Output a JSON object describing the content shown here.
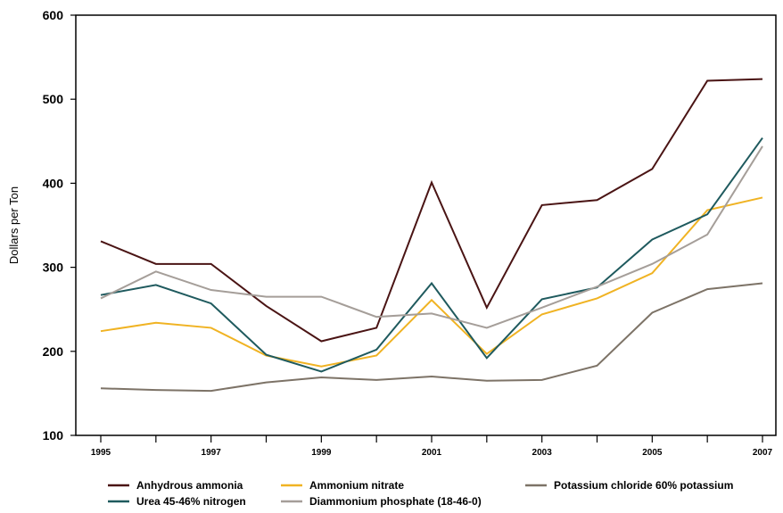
{
  "chart_data": {
    "type": "line",
    "title": "",
    "xlabel": "",
    "ylabel": "Dollars per Ton",
    "x": [
      1995,
      1996,
      1997,
      1998,
      1999,
      2000,
      2001,
      2002,
      2003,
      2004,
      2005,
      2006,
      2007
    ],
    "x_tick_labels": [
      "1995",
      "1997",
      "1999",
      "2001",
      "2003",
      "2005",
      "2007"
    ],
    "y_tick_labels": [
      "100",
      "200",
      "300",
      "400",
      "500",
      "600"
    ],
    "xlim": [
      1995,
      2007
    ],
    "ylim": [
      100,
      600
    ],
    "grid": false,
    "legend_position": "bottom",
    "series": [
      {
        "name": "Anhydrous ammonia",
        "color": "#4a1414",
        "values": [
          331,
          304,
          304,
          254,
          212,
          228,
          401,
          252,
          374,
          380,
          417,
          522,
          524
        ]
      },
      {
        "name": "Ammonium nitrate",
        "color": "#f0b323",
        "values": [
          224,
          234,
          228,
          195,
          182,
          195,
          261,
          197,
          244,
          263,
          293,
          368,
          383
        ]
      },
      {
        "name": "Potassium chloride 60% potassium",
        "color": "#7d7367",
        "values": [
          156,
          154,
          153,
          163,
          169,
          166,
          170,
          165,
          166,
          183,
          246,
          274,
          281
        ]
      },
      {
        "name": "Urea 45-46% nitrogen",
        "color": "#1f5a5e",
        "values": [
          267,
          279,
          257,
          196,
          176,
          202,
          281,
          192,
          262,
          276,
          333,
          363,
          454
        ]
      },
      {
        "name": "Diammonium phosphate (18-46-0)",
        "color": "#a59e99",
        "values": [
          263,
          295,
          273,
          265,
          265,
          241,
          245,
          228,
          252,
          277,
          304,
          339,
          444
        ]
      }
    ]
  }
}
